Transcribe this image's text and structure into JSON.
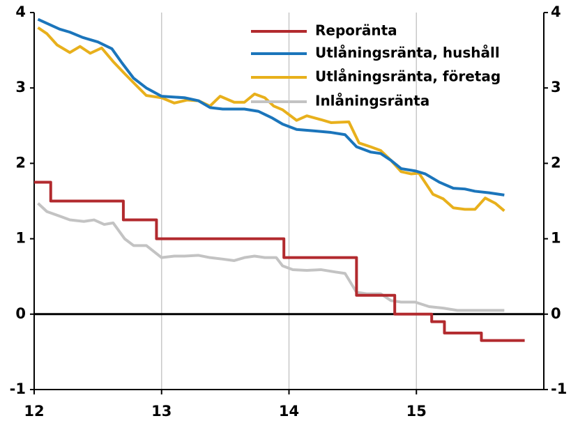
{
  "chart_data": {
    "type": "line",
    "xlim": [
      12,
      16
    ],
    "xticks": [
      12,
      13,
      14,
      15
    ],
    "grid": true,
    "ylim": [
      -1,
      4
    ],
    "yticks": [
      -1,
      0,
      1,
      2,
      3,
      4
    ],
    "y2lim": [
      -1,
      4
    ],
    "y2ticks": [
      -1,
      0,
      1,
      2,
      3,
      4
    ],
    "legend": "upper right",
    "series": [
      {
        "name": "Reporänta",
        "color": "#b22a2e",
        "x": [
          12.0,
          12.13,
          12.13,
          12.7,
          12.7,
          12.96,
          12.96,
          13.96,
          13.96,
          14.53,
          14.53,
          14.83,
          14.83,
          15.12,
          15.12,
          15.22,
          15.22,
          15.51,
          15.51,
          15.85
        ],
        "values": [
          1.75,
          1.75,
          1.5,
          1.5,
          1.25,
          1.25,
          1.0,
          1.0,
          0.75,
          0.75,
          0.25,
          0.25,
          0,
          0,
          -0.1,
          -0.1,
          -0.25,
          -0.25,
          -0.35,
          -0.35
        ]
      },
      {
        "name": "Utlåningsränta, hushåll",
        "color": "#1b75bb",
        "x": [
          12.03,
          12.2,
          12.28,
          12.38,
          12.5,
          12.61,
          12.69,
          12.78,
          12.88,
          13.0,
          13.18,
          13.29,
          13.38,
          13.48,
          13.65,
          13.76,
          13.87,
          13.95,
          14.06,
          14.2,
          14.33,
          14.44,
          14.53,
          14.64,
          14.72,
          14.8,
          14.88,
          14.99,
          15.07,
          15.18,
          15.29,
          15.38,
          15.46,
          15.57,
          15.69
        ],
        "values": [
          3.91,
          3.78,
          3.74,
          3.67,
          3.61,
          3.52,
          3.33,
          3.13,
          3.0,
          2.89,
          2.87,
          2.83,
          2.74,
          2.72,
          2.72,
          2.69,
          2.6,
          2.52,
          2.45,
          2.43,
          2.41,
          2.38,
          2.22,
          2.15,
          2.13,
          2.04,
          1.93,
          1.9,
          1.86,
          1.75,
          1.67,
          1.66,
          1.63,
          1.61,
          1.58
        ]
      },
      {
        "name": "Utlåningsränta, företag",
        "color": "#e8b01c",
        "x": [
          12.03,
          12.1,
          12.18,
          12.28,
          12.36,
          12.44,
          12.53,
          12.62,
          12.71,
          12.78,
          12.88,
          13.0,
          13.1,
          13.2,
          13.29,
          13.38,
          13.46,
          13.57,
          13.65,
          13.73,
          13.81,
          13.88,
          13.95,
          14.06,
          14.14,
          14.25,
          14.33,
          14.47,
          14.55,
          14.64,
          14.72,
          14.8,
          14.88,
          14.96,
          15.02,
          15.13,
          15.21,
          15.29,
          15.38,
          15.46,
          15.54,
          15.62,
          15.69
        ],
        "values": [
          3.8,
          3.72,
          3.57,
          3.47,
          3.55,
          3.46,
          3.53,
          3.35,
          3.19,
          3.07,
          2.9,
          2.87,
          2.8,
          2.84,
          2.83,
          2.76,
          2.89,
          2.81,
          2.81,
          2.92,
          2.87,
          2.76,
          2.71,
          2.57,
          2.63,
          2.58,
          2.54,
          2.55,
          2.27,
          2.22,
          2.17,
          2.04,
          1.89,
          1.86,
          1.87,
          1.59,
          1.53,
          1.41,
          1.39,
          1.39,
          1.54,
          1.47,
          1.37
        ]
      },
      {
        "name": "Inlåningsränta",
        "color": "#c3c3c3",
        "x": [
          12.03,
          12.1,
          12.2,
          12.28,
          12.39,
          12.47,
          12.55,
          12.62,
          12.71,
          12.78,
          12.88,
          13.0,
          13.1,
          13.18,
          13.29,
          13.38,
          13.48,
          13.57,
          13.65,
          13.73,
          13.81,
          13.9,
          13.95,
          14.03,
          14.14,
          14.25,
          14.36,
          14.44,
          14.53,
          14.61,
          14.72,
          14.8,
          14.88,
          14.99,
          15.1,
          15.21,
          15.32,
          15.46,
          15.57,
          15.69
        ],
        "values": [
          1.47,
          1.36,
          1.3,
          1.25,
          1.23,
          1.25,
          1.19,
          1.21,
          1.0,
          0.91,
          0.91,
          0.75,
          0.77,
          0.77,
          0.78,
          0.75,
          0.73,
          0.71,
          0.75,
          0.77,
          0.75,
          0.75,
          0.64,
          0.59,
          0.58,
          0.59,
          0.56,
          0.54,
          0.29,
          0.27,
          0.27,
          0.18,
          0.16,
          0.16,
          0.1,
          0.08,
          0.05,
          0.05,
          0.05,
          0.05
        ]
      }
    ]
  }
}
